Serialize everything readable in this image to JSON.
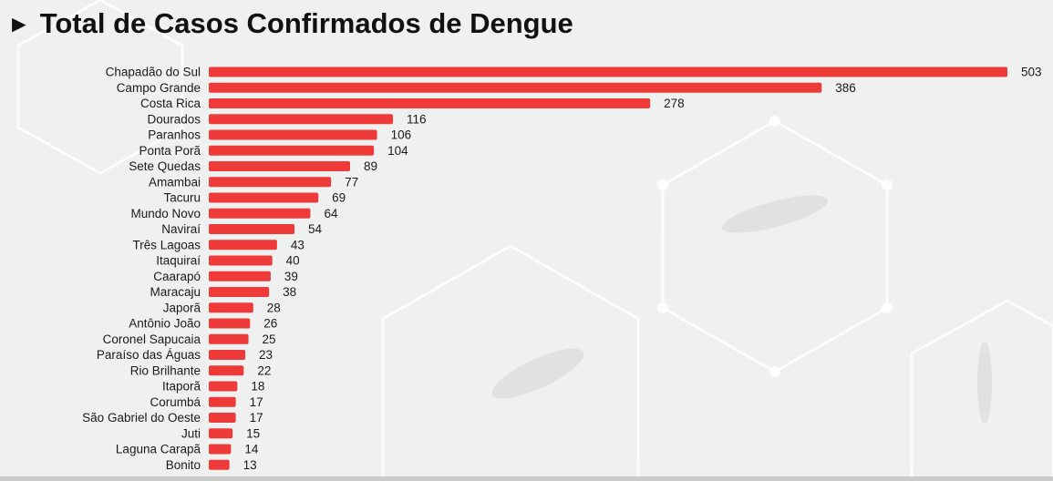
{
  "title": {
    "arrow": "►",
    "text": "Total de Casos Confirmados de Dengue"
  },
  "colors": {
    "bar": "#ef3a3a",
    "background": "#eef1ef",
    "text": "#111111"
  },
  "chart_data": {
    "type": "bar",
    "orientation": "horizontal",
    "title": "Total de Casos Confirmados de Dengue",
    "xlabel": "",
    "ylabel": "",
    "grid": false,
    "categories": [
      "Chapadão do Sul",
      "Campo Grande",
      "Costa Rica",
      "Dourados",
      "Paranhos",
      "Ponta Porã",
      "Sete Quedas",
      "Amambai",
      "Tacuru",
      "Mundo Novo",
      "Naviraí",
      "Três Lagoas",
      "Itaquiraí",
      "Caarapó",
      "Maracaju",
      "Japorã",
      "Antônio João",
      "Coronel Sapucaia",
      "Paraíso das Águas",
      "Rio Brilhante",
      "Itaporã",
      "Corumbá",
      "São Gabriel do Oeste",
      "Juti",
      "Laguna Carapã",
      "Bonito"
    ],
    "values": [
      503,
      386,
      278,
      116,
      106,
      104,
      89,
      77,
      69,
      64,
      54,
      43,
      40,
      39,
      38,
      28,
      26,
      25,
      23,
      22,
      18,
      17,
      17,
      15,
      14,
      13
    ],
    "xlim": [
      0,
      503
    ]
  }
}
